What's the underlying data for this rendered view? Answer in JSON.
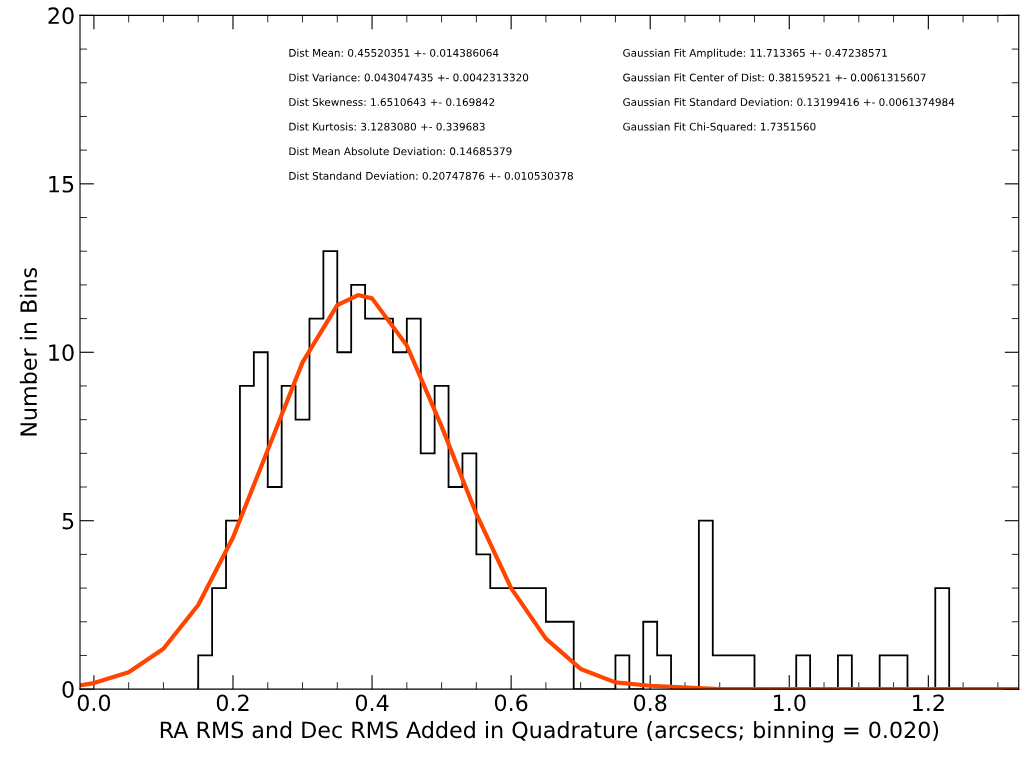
{
  "chart_data": {
    "type": "histogram",
    "xlabel": "RA RMS and Dec RMS Added in Quadrature (arcsecs; binning = 0.020)",
    "ylabel": "Number in Bins",
    "bins": [
      0.15,
      0.17,
      0.19,
      0.21,
      0.23,
      0.25,
      0.27,
      0.29,
      0.31,
      0.33,
      0.35,
      0.37,
      0.39,
      0.41,
      0.43,
      0.45,
      0.47,
      0.49,
      0.51,
      0.53,
      0.55,
      0.57,
      0.59,
      0.61,
      0.63,
      0.65,
      0.67,
      0.69,
      0.71,
      0.73,
      0.75,
      0.77,
      0.79,
      0.81,
      0.83,
      0.85,
      0.87,
      0.89,
      0.91,
      0.93,
      0.95,
      0.97,
      0.99,
      1.01,
      1.03,
      1.05,
      1.07,
      1.09,
      1.11,
      1.13,
      1.15,
      1.17,
      1.19,
      1.21,
      1.23
    ],
    "values": [
      1,
      3,
      5,
      9,
      10,
      6,
      9,
      8,
      11,
      13,
      10,
      12,
      11,
      11,
      10,
      11,
      7,
      9,
      6,
      7,
      4,
      3,
      3,
      3,
      3,
      2,
      2,
      0,
      0,
      0,
      1,
      0,
      2,
      1,
      0,
      0,
      5,
      1,
      1,
      1,
      0,
      0,
      0,
      1,
      0,
      0,
      1,
      0,
      0,
      1,
      1,
      0,
      0,
      3
    ],
    "color": "#000000",
    "series": [
      {
        "type": "line",
        "color": "#ff4500",
        "x": [
          -0.02,
          0.0,
          0.05,
          0.1,
          0.15,
          0.2,
          0.25,
          0.3,
          0.35,
          0.38,
          0.4,
          0.45,
          0.5,
          0.55,
          0.6,
          0.65,
          0.7,
          0.75,
          0.8,
          0.9,
          1.0,
          1.33
        ],
        "values": [
          0.11,
          0.18,
          0.5,
          1.2,
          2.5,
          4.5,
          7.1,
          9.7,
          11.4,
          11.7,
          11.6,
          10.2,
          7.8,
          5.2,
          3.0,
          1.5,
          0.6,
          0.2,
          0.1,
          0.0,
          0.0,
          0.0
        ]
      }
    ],
    "xlim": [
      -0.02,
      1.33
    ],
    "xticks": [
      {
        "value": 0.0,
        "label": "0.0"
      },
      {
        "value": 0.2,
        "label": "0.2"
      },
      {
        "value": 0.4,
        "label": "0.4"
      },
      {
        "value": 0.6,
        "label": "0.6"
      },
      {
        "value": 0.8,
        "label": "0.8"
      },
      {
        "value": 1.0,
        "label": "1.0"
      },
      {
        "value": 1.2,
        "label": "1.2"
      }
    ],
    "ylim": [
      0,
      20
    ],
    "yticks": [
      0,
      5,
      10,
      15,
      20
    ],
    "grid": false,
    "annotations": [
      "Dist Mean: 0.45520351 +- 0.014386064",
      "Dist Variance: 0.043047435 +- 0.0042313320",
      "Dist Skewness: 1.6510643 +- 0.169842",
      "Dist Kurtosis: 3.1283080 +- 0.339683",
      "Dist Mean Absolute Deviation: 0.14685379",
      "Dist Standand Deviation: 0.20747876 +- 0.010530378",
      "Gaussian Fit Amplitude: 11.713365 +- 0.47238571",
      "Gaussian Fit Center of Dist: 0.38159521 +- 0.0061315607",
      "Gaussian Fit Standard Deviation: 0.13199416 +- 0.0061374984",
      "Gaussian Fit Chi-Squared: 1.7351560"
    ]
  }
}
